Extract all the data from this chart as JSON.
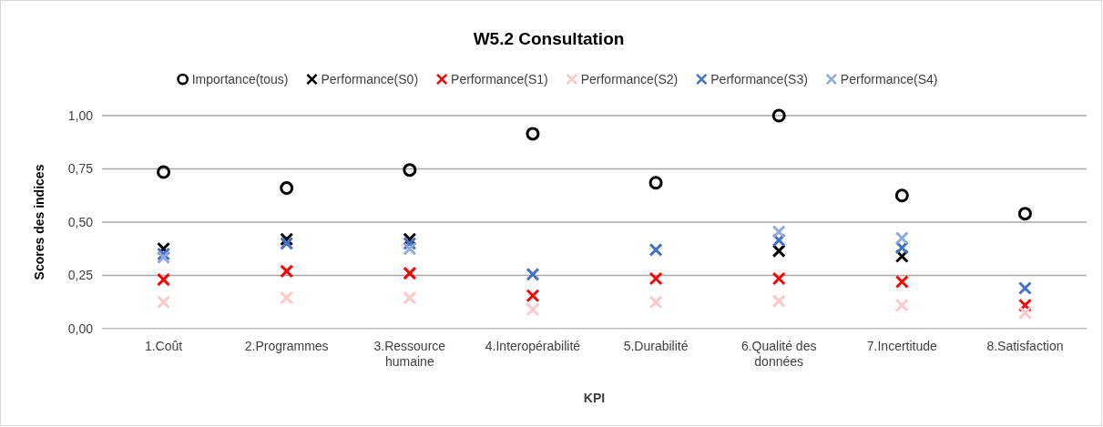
{
  "chart_data": {
    "type": "scatter",
    "title": "W5.2 Consultation",
    "xlabel": "KPI",
    "ylabel": "Scores des indices",
    "categories": [
      "1.Coût",
      "2.Programmes",
      "3.Ressource humaine",
      "4.Interopérabilité",
      "5.Durabilité",
      "6.Qualité des données",
      "7.Incertitude",
      "8.Satisfaction"
    ],
    "series": [
      {
        "name": "Importance(tous)",
        "color": "#000000",
        "marker": "circle",
        "values": [
          0.735,
          0.66,
          0.745,
          0.915,
          0.685,
          1.0,
          0.625,
          0.54
        ]
      },
      {
        "name": "Performance(S0)",
        "color": "#000000",
        "marker": "cross",
        "values": [
          0.375,
          0.42,
          0.42,
          null,
          null,
          0.365,
          0.34,
          null
        ]
      },
      {
        "name": "Performance(S1)",
        "color": "#ff0000",
        "marker": "cross",
        "values": [
          0.23,
          0.27,
          0.26,
          0.155,
          0.235,
          0.235,
          0.22,
          0.11
        ]
      },
      {
        "name": "Performance(S2)",
        "color": "#ffc7c7",
        "marker": "cross",
        "values": [
          0.125,
          0.145,
          0.145,
          0.09,
          0.125,
          0.13,
          0.11,
          0.075
        ]
      },
      {
        "name": "Performance(S3)",
        "color": "#4472c4",
        "marker": "cross",
        "values": [
          0.35,
          0.4,
          0.4,
          0.255,
          0.37,
          0.415,
          0.38,
          0.19
        ]
      },
      {
        "name": "Performance(S4)",
        "color": "#8faadc",
        "marker": "cross",
        "values": [
          0.335,
          null,
          0.375,
          null,
          null,
          0.455,
          0.425,
          null
        ]
      }
    ],
    "ylim": [
      0,
      1
    ],
    "yticks": [
      {
        "value": 0,
        "label": "0,00"
      },
      {
        "value": 0.25,
        "label": "0,25"
      },
      {
        "value": 0.5,
        "label": "0,50"
      },
      {
        "value": 0.75,
        "label": "0,75"
      },
      {
        "value": 1,
        "label": "1,00"
      }
    ],
    "grid": "y",
    "legend": "top"
  }
}
